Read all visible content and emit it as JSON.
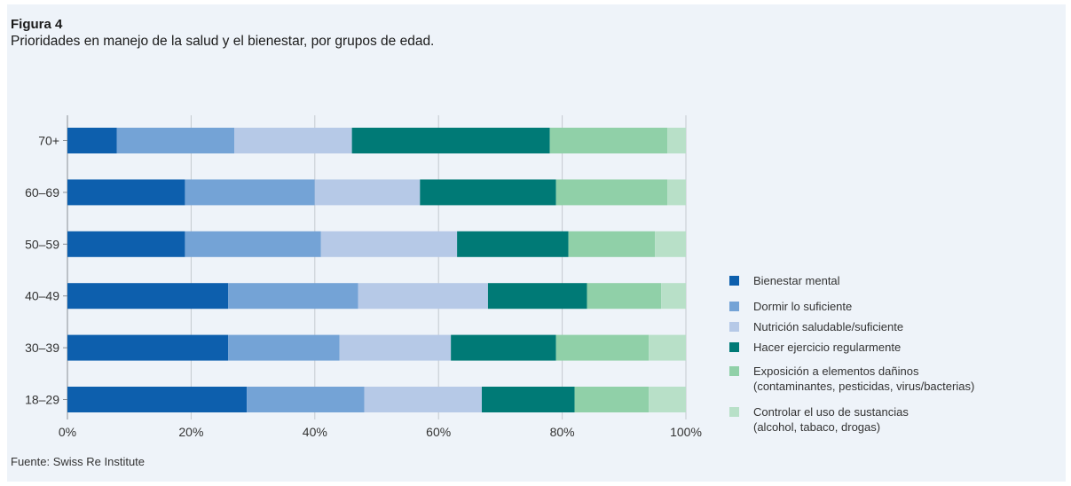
{
  "figure": {
    "label": "Figura 4",
    "subtitle": "Prioridades en manejo de la salud y el bienestar, por grupos de edad.",
    "source": "Fuente: Swiss Re Institute"
  },
  "chart_data": {
    "type": "bar",
    "orientation": "horizontal",
    "stacked": true,
    "title": "",
    "xlabel": "",
    "ylabel": "",
    "xlim": [
      0,
      100
    ],
    "x_ticks": [
      "0%",
      "20%",
      "40%",
      "60%",
      "80%",
      "100%"
    ],
    "grid": "vertical",
    "legend_position": "right",
    "categories": [
      "70+",
      "60–69",
      "50–59",
      "40–49",
      "30–39",
      "18–29"
    ],
    "series": [
      {
        "name": [
          "Bienestar mental"
        ],
        "color": "#0d5fad",
        "values": [
          8,
          19,
          19,
          26,
          26,
          29
        ]
      },
      {
        "name": [
          "Dormir lo suficiente"
        ],
        "color": "#74a3d6",
        "values": [
          19,
          21,
          22,
          21,
          18,
          19
        ]
      },
      {
        "name": [
          "Nutrición saludable/suficiente"
        ],
        "color": "#b6c9e7",
        "values": [
          19,
          17,
          22,
          21,
          18,
          19
        ]
      },
      {
        "name": [
          "Hacer ejercicio regularmente"
        ],
        "color": "#007a76",
        "values": [
          32,
          22,
          18,
          16,
          17,
          15
        ]
      },
      {
        "name": [
          "Exposición a elementos dañinos",
          "(contaminantes, pesticidas, virus/bacterias)"
        ],
        "color": "#90d0a8",
        "values": [
          19,
          18,
          14,
          12,
          15,
          12
        ]
      },
      {
        "name": [
          "Controlar el uso de sustancias",
          "(alcohol, tabaco, drogas)"
        ],
        "color": "#b8e0c8",
        "values": [
          3,
          3,
          5,
          4,
          6,
          6
        ]
      }
    ]
  }
}
